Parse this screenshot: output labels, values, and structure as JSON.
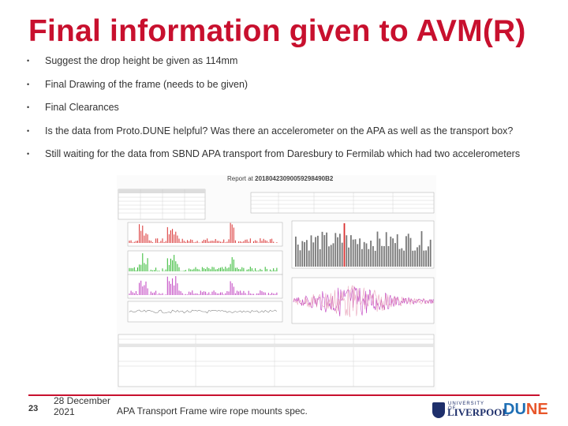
{
  "slide": {
    "title": "Final information given to AVM(R)",
    "bullets": [
      "Suggest the drop height be given as 114mm",
      "Final Drawing of the frame (needs to be given)",
      "Final Clearances",
      "Is the data from Proto.DUNE helpful? Was there an accelerometer on the APA as well as the transport box?",
      "Still waiting for the data from SBND APA transport from Daresbury to Fermilab which had two accelerometers"
    ],
    "figure": {
      "report_label": "Report at",
      "report_id": "20180423090059298490B2"
    },
    "footer": {
      "page_number": "23",
      "date": "28 December 2021",
      "text": "APA Transport Frame wire rope mounts spec.",
      "logo_university_small": "UNIVERSITY OF",
      "logo_university": "LIVERPOOL",
      "logo_dune_left": "DU",
      "logo_dune_right": "NE"
    }
  },
  "colors": {
    "title": "#c8102e",
    "accent_line": "#c8102e",
    "text": "#333333",
    "liverpool_blue": "#1e2f6b",
    "dune_blue": "#1e6fb5"
  }
}
